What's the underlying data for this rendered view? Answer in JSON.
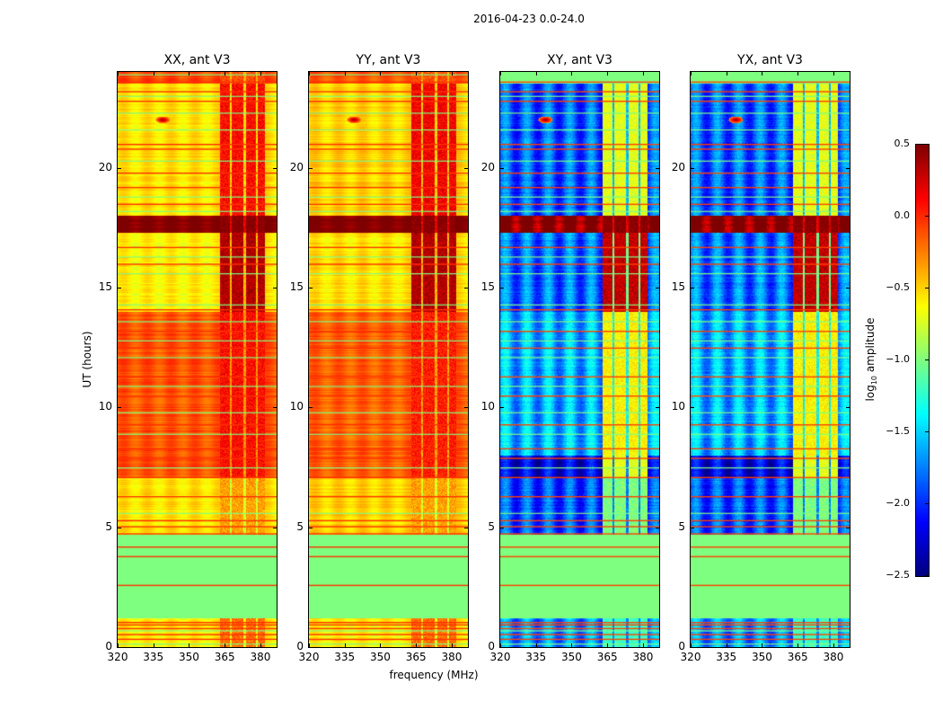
{
  "chart_data": {
    "type": "heatmap",
    "title": "2016-04-23 0.0-24.0",
    "xlabel": "frequency (MHz)",
    "ylabel": "UT (hours)",
    "xlim": [
      320,
      386.8
    ],
    "ylim": [
      0,
      24
    ],
    "xticks": [
      320,
      335,
      350,
      365,
      380
    ],
    "yticks": [
      0,
      5,
      10,
      15,
      20
    ],
    "colormap": "jet",
    "colorbar": {
      "label_main": "log",
      "label_sub": "10",
      "label_rest": " amplitude",
      "range": [
        -2.5,
        0.5
      ],
      "ticks": [
        "0.5",
        "0.0",
        "−0.5",
        "−1.0",
        "−1.5",
        "−2.0",
        "−2.5"
      ],
      "tick_values": [
        0.5,
        0.0,
        -0.5,
        -1.0,
        -1.5,
        -2.0,
        -2.5
      ]
    },
    "rfi_channels_mhz": [
      [
        363,
        367
      ],
      [
        368,
        373
      ],
      [
        374,
        378
      ],
      [
        379,
        382
      ]
    ],
    "source_spot": {
      "freq": 339,
      "ut": 22.0
    },
    "panels": [
      {
        "title": "XX, ant V3",
        "kind": "auto",
        "segments": [
          [
            0,
            1.2,
            -0.6,
            -0.2
          ],
          [
            1.2,
            4.7,
            -1.0,
            -1.0
          ],
          [
            4.7,
            7.1,
            -0.55,
            -0.35
          ],
          [
            7.1,
            14.0,
            -0.12,
            0.1
          ],
          [
            14.0,
            17.3,
            -0.6,
            0.35
          ],
          [
            17.3,
            18.0,
            0.5,
            0.5
          ],
          [
            18.0,
            23.5,
            -0.55,
            0.1
          ],
          [
            23.5,
            24,
            -0.1,
            -0.1
          ]
        ]
      },
      {
        "title": "YY, ant V3",
        "kind": "auto",
        "segments": [
          [
            0,
            1.2,
            -0.6,
            -0.2
          ],
          [
            1.2,
            4.7,
            -1.0,
            -1.0
          ],
          [
            4.7,
            7.1,
            -0.5,
            -0.35
          ],
          [
            7.1,
            14.0,
            -0.15,
            0.05
          ],
          [
            14.0,
            17.3,
            -0.55,
            0.35
          ],
          [
            17.3,
            18.0,
            0.5,
            0.5
          ],
          [
            18.0,
            23.5,
            -0.5,
            0.15
          ],
          [
            23.5,
            24,
            -0.1,
            -0.1
          ]
        ]
      },
      {
        "title": "XY, ant V3",
        "kind": "cross",
        "segments": [
          [
            0,
            1.2,
            -1.7,
            -1.2
          ],
          [
            1.2,
            4.7,
            -1.0,
            -1.0
          ],
          [
            4.7,
            7.1,
            -1.9,
            -1.0
          ],
          [
            7.1,
            8.0,
            -2.2,
            -0.7
          ],
          [
            8.0,
            14.0,
            -1.6,
            -0.6
          ],
          [
            14.0,
            17.3,
            -1.8,
            0.3
          ],
          [
            17.3,
            18.0,
            0.5,
            0.5
          ],
          [
            18.0,
            23.5,
            -1.85,
            -0.7
          ],
          [
            23.5,
            24,
            -1.0,
            -1.0
          ]
        ]
      },
      {
        "title": "YX, ant V3",
        "kind": "cross",
        "segments": [
          [
            0,
            1.2,
            -1.7,
            -1.2
          ],
          [
            1.2,
            4.7,
            -1.0,
            -1.0
          ],
          [
            4.7,
            7.1,
            -1.9,
            -1.0
          ],
          [
            7.1,
            8.0,
            -2.2,
            -0.7
          ],
          [
            8.0,
            14.0,
            -1.6,
            -0.6
          ],
          [
            14.0,
            17.3,
            -1.8,
            0.3
          ],
          [
            17.3,
            18.0,
            0.5,
            0.5
          ],
          [
            18.0,
            23.5,
            -1.85,
            -0.7
          ],
          [
            23.5,
            24,
            -1.0,
            -1.0
          ]
        ]
      }
    ],
    "hot_lines_ut": [
      0.35,
      0.55,
      0.8,
      0.95,
      1.05,
      2.6,
      3.8,
      4.2,
      4.75,
      5.05,
      5.3,
      6.3,
      7.1,
      7.9,
      8.3,
      9.3,
      10.5,
      11.3,
      12.5,
      13.2,
      14.1,
      16.0,
      16.7,
      18.5,
      19.2,
      19.8,
      20.8,
      21.0,
      22.8,
      23.2,
      23.6
    ],
    "flag_lines_ut": [
      0.15,
      0.7,
      1.8,
      3.0,
      5.6,
      7.5,
      8.9,
      9.8,
      10.9,
      12.1,
      12.8,
      13.6,
      14.3,
      15.6,
      16.3,
      18.2,
      18.8,
      20.3,
      21.6,
      22.3,
      23.0,
      23.9
    ]
  }
}
